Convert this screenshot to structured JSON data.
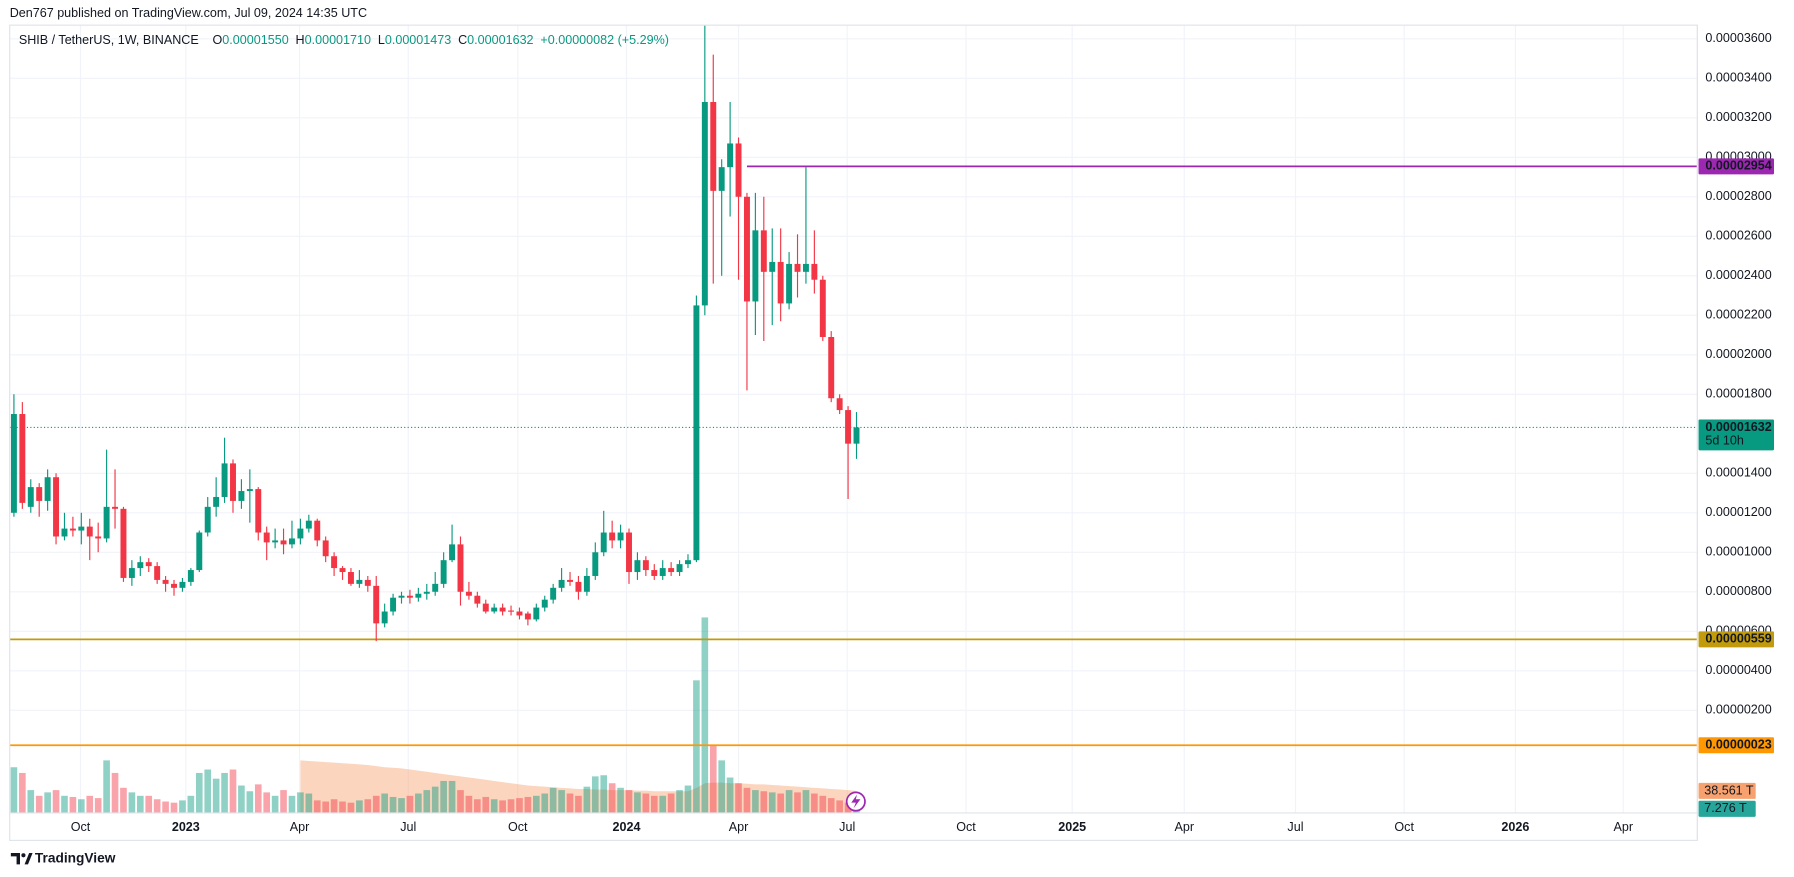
{
  "chart_data": {
    "type": "candlestick",
    "published": "Den767 published on TradingView.com, Jul 09, 2024 14:35 UTC",
    "title": "SHIB / TetherUS, 1W, BINANCE",
    "legend": [
      {
        "key": "O",
        "text": "0.00001550"
      },
      {
        "key": "H",
        "text": "0.00001710"
      },
      {
        "key": "L",
        "text": "0.00001473"
      },
      {
        "key": "C",
        "text": "0.00001632"
      }
    ],
    "change": "+0.00000082 (+5.29%)",
    "up_color": "#089981",
    "down_color": "#f23645",
    "open": [
      1.2e-05,
      1.7e-05,
      1.23e-05,
      1.33e-05,
      1.26e-05,
      1.38e-05,
      1.08e-05,
      1.12e-05,
      1.11e-05,
      1.13e-05,
      1.08e-05,
      1.07e-05,
      1.23e-05,
      1.22e-05,
      8.7e-06,
      9.2e-06,
      9.5e-06,
      9.3e-06,
      8.6e-06,
      8.4e-06,
      8.2e-06,
      8.5e-06,
      9.1e-06,
      1.1e-05,
      1.23e-05,
      1.28e-05,
      1.45e-05,
      1.26e-05,
      1.31e-05,
      1.32e-05,
      1.1e-05,
      1.05e-05,
      1.06e-05,
      1.04e-05,
      1.07e-05,
      1.12e-05,
      1.16e-05,
      1.06e-05,
      9.8e-06,
      9.2e-06,
      9e-06,
      8.4e-06,
      8.6e-06,
      8.3e-06,
      6.4e-06,
      7e-06,
      7.7e-06,
      7.8e-06,
      7.7e-06,
      7.9e-06,
      8e-06,
      8.4e-06,
      9.6e-06,
      1.04e-05,
      8e-06,
      7.8e-06,
      7.4e-06,
      7e-06,
      7.2e-06,
      7.05e-06,
      7e-06,
      6.9e-06,
      6.6e-06,
      7.2e-06,
      7.6e-06,
      8.2e-06,
      8.6e-06,
      8.5e-06,
      8e-06,
      8.8e-06,
      1e-05,
      1.1e-05,
      1.06e-05,
      1.1e-05,
      9e-06,
      9.6e-06,
      9.1e-06,
      8.8e-06,
      9.2e-06,
      9e-06,
      9.4e-06,
      9.6e-06,
      2.25e-05,
      3.28e-05,
      2.83e-05,
      2.95e-05,
      3.07e-05,
      2.8e-05,
      2.27e-05,
      2.63e-05,
      2.42e-05,
      2.47e-05,
      2.26e-05,
      2.46e-05,
      2.42e-05,
      2.46e-05,
      2.38e-05,
      2.09e-05,
      1.78e-05,
      1.72e-05,
      1.55e-05
    ],
    "high": [
      1.8e-05,
      1.76e-05,
      1.37e-05,
      1.35e-05,
      1.42e-05,
      1.4e-05,
      1.2e-05,
      1.18e-05,
      1.2e-05,
      1.17e-05,
      1.15e-05,
      1.52e-05,
      1.42e-05,
      1.23e-05,
      9.6e-06,
      9.8e-06,
      9.7e-06,
      9.5e-06,
      8.8e-06,
      8.6e-06,
      8.7e-06,
      9.2e-06,
      1.11e-05,
      1.28e-05,
      1.38e-05,
      1.58e-05,
      1.47e-05,
      1.37e-05,
      1.42e-05,
      1.33e-05,
      1.13e-05,
      1.12e-05,
      1.12e-05,
      1.16e-05,
      1.17e-05,
      1.19e-05,
      1.17e-05,
      1.08e-05,
      1e-05,
      9.3e-06,
      9.2e-06,
      9.1e-06,
      8.8e-06,
      8.8e-06,
      7.4e-06,
      7.9e-06,
      8e-06,
      8.1e-06,
      8.2e-06,
      8.4e-06,
      9e-06,
      1e-05,
      1.14e-05,
      1.08e-05,
      8.5e-06,
      8e-06,
      7.6e-06,
      7.4e-06,
      7.4e-06,
      7.3e-06,
      7.2e-06,
      7e-06,
      7.4e-06,
      7.8e-06,
      8.4e-06,
      9.2e-06,
      9e-06,
      8.8e-06,
      9.2e-06,
      1.05e-05,
      1.21e-05,
      1.16e-05,
      1.14e-05,
      1.12e-05,
      1e-05,
      9.8e-06,
      9.4e-06,
      9.6e-06,
      9.5e-06,
      9.6e-06,
      9.9e-06,
      2.3e-05,
      3.7e-05,
      3.52e-05,
      2.99e-05,
      3.28e-05,
      3.1e-05,
      2.82e-05,
      2.82e-05,
      2.8e-05,
      2.64e-05,
      2.64e-05,
      2.52e-05,
      2.61e-05,
      2.95e-05,
      2.63e-05,
      2.4e-05,
      2.12e-05,
      1.8e-05,
      1.74e-05,
      1.71e-05
    ],
    "low": [
      1.18e-05,
      1.22e-05,
      1.2e-05,
      1.18e-05,
      1.21e-05,
      1.04e-05,
      1.06e-05,
      1.08e-05,
      1.04e-05,
      9.6e-06,
      1e-05,
      1.05e-05,
      1.12e-05,
      8.5e-06,
      8.3e-06,
      8.8e-06,
      9e-06,
      8.4e-06,
      8e-06,
      7.8e-06,
      8e-06,
      8.3e-06,
      9e-06,
      1.08e-05,
      1.18e-05,
      1.25e-05,
      1.2e-05,
      1.22e-05,
      1.15e-05,
      1.06e-05,
      9.6e-06,
      1.02e-05,
      9.9e-06,
      1.02e-05,
      1.04e-05,
      1.1e-05,
      1.03e-05,
      9.5e-06,
      8.8e-06,
      8.6e-06,
      8.3e-06,
      8.2e-06,
      8e-06,
      5.5e-06,
      6.2e-06,
      6.8e-06,
      7.4e-06,
      7.4e-06,
      7.5e-06,
      7.6e-06,
      7.8e-06,
      8.2e-06,
      9.5e-06,
      7.3e-06,
      7.6e-06,
      7.2e-06,
      6.9e-06,
      6.9e-06,
      6.8e-06,
      6.8e-06,
      6.6e-06,
      6.3e-06,
      6.5e-06,
      7e-06,
      7.4e-06,
      8e-06,
      8.3e-06,
      7.6e-06,
      7.8e-06,
      8.6e-06,
      9.8e-06,
      1.02e-05,
      1.02e-05,
      8.4e-06,
      8.6e-06,
      8.8e-06,
      8.6e-06,
      8.6e-06,
      8.8e-06,
      8.8e-06,
      9.2e-06,
      9.5e-06,
      2.2e-05,
      2.36e-05,
      2.4e-05,
      2.7e-05,
      2.38e-05,
      1.82e-05,
      2.1e-05,
      2.07e-05,
      2.15e-05,
      2.17e-05,
      2.23e-05,
      2.29e-05,
      2.36e-05,
      2.31e-05,
      2.07e-05,
      1.76e-05,
      1.7e-05,
      1.27e-05,
      1.473e-05
    ],
    "close": [
      1.7e-05,
      1.25e-05,
      1.33e-05,
      1.26e-05,
      1.38e-05,
      1.08e-05,
      1.12e-05,
      1.11e-05,
      1.13e-05,
      1.08e-05,
      1.07e-05,
      1.23e-05,
      1.22e-05,
      8.7e-06,
      9.2e-06,
      9.5e-06,
      9.3e-06,
      8.6e-06,
      8.4e-06,
      8.2e-06,
      8.5e-06,
      9.1e-06,
      1.1e-05,
      1.23e-05,
      1.28e-05,
      1.45e-05,
      1.26e-05,
      1.31e-05,
      1.32e-05,
      1.1e-05,
      1.05e-05,
      1.06e-05,
      1.04e-05,
      1.07e-05,
      1.12e-05,
      1.16e-05,
      1.06e-05,
      9.8e-06,
      9.2e-06,
      9e-06,
      8.4e-06,
      8.6e-06,
      8.3e-06,
      6.4e-06,
      7e-06,
      7.7e-06,
      7.8e-06,
      7.7e-06,
      7.9e-06,
      8e-06,
      8.4e-06,
      9.6e-06,
      1.04e-05,
      8e-06,
      7.8e-06,
      7.4e-06,
      7e-06,
      7.2e-06,
      7e-06,
      7e-06,
      6.8e-06,
      6.6e-06,
      7.2e-06,
      7.6e-06,
      8.2e-06,
      8.6e-06,
      8.5e-06,
      8e-06,
      8.8e-06,
      1e-05,
      1.1e-05,
      1.06e-05,
      1.1e-05,
      9e-06,
      9.6e-06,
      9.1e-06,
      8.8e-06,
      9.2e-06,
      9e-06,
      9.4e-06,
      9.6e-06,
      2.25e-05,
      3.28e-05,
      2.83e-05,
      2.95e-05,
      3.07e-05,
      2.8e-05,
      2.27e-05,
      2.63e-05,
      2.42e-05,
      2.47e-05,
      2.26e-05,
      2.46e-05,
      2.42e-05,
      2.46e-05,
      2.38e-05,
      2.09e-05,
      1.78e-05,
      1.72e-05,
      1.55e-05,
      1.632e-05
    ],
    "volume": {
      "values": [
        80,
        70,
        40,
        30,
        36,
        40,
        30,
        28,
        24,
        30,
        26,
        92,
        70,
        44,
        36,
        30,
        30,
        24,
        20,
        18,
        22,
        30,
        70,
        76,
        60,
        70,
        76,
        48,
        38,
        50,
        36,
        30,
        40,
        30,
        36,
        34,
        22,
        20,
        24,
        20,
        18,
        22,
        24,
        30,
        34,
        28,
        26,
        30,
        34,
        40,
        46,
        56,
        56,
        40,
        30,
        24,
        28,
        24,
        22,
        24,
        26,
        28,
        30,
        34,
        44,
        40,
        34,
        30,
        46,
        64,
        66,
        52,
        44,
        40,
        36,
        34,
        30,
        30,
        34,
        40,
        48,
        232,
        342,
        118,
        92,
        62,
        52,
        44,
        40,
        38,
        36,
        34,
        40,
        36,
        40,
        34,
        30,
        26,
        22,
        18,
        7.276
      ],
      "ma": [
        null,
        null,
        null,
        null,
        null,
        null,
        null,
        null,
        null,
        null,
        null,
        null,
        null,
        null,
        null,
        null,
        null,
        null,
        null,
        null,
        null,
        null,
        null,
        null,
        null,
        null,
        null,
        null,
        null,
        null,
        null,
        null,
        null,
        null,
        92,
        91,
        90,
        89,
        88,
        87,
        86,
        85,
        84,
        82,
        80,
        79,
        78,
        76,
        74,
        72,
        70,
        68,
        66,
        64,
        62,
        60,
        58,
        56,
        54,
        52,
        50,
        48,
        47,
        46,
        45,
        44,
        43,
        42,
        42,
        41,
        41,
        40,
        40,
        40,
        39,
        39,
        38,
        38,
        38,
        38,
        38,
        44,
        52,
        53,
        53,
        52,
        52,
        51,
        50,
        50,
        49,
        48,
        47,
        46,
        45,
        44,
        43,
        42,
        41,
        40,
        38.561
      ],
      "ma_color": "#f7a26e",
      "vlim": [
        0,
        350
      ],
      "tags": [
        {
          "value": 38.561,
          "label": "38.561 T",
          "color": "#f7a26e",
          "text_color": "#131722"
        },
        {
          "value": 7.276,
          "label": "7.276 T",
          "color": "#26a69a",
          "text_color": "#ffffff"
        }
      ]
    },
    "xlim": [
      -0.5,
      199.8
    ],
    "xticks": [
      {
        "value": 7.9,
        "label": "Oct"
      },
      {
        "value": 20.4,
        "label": "2023"
      },
      {
        "value": 33.9,
        "label": "Apr"
      },
      {
        "value": 46.8,
        "label": "Jul"
      },
      {
        "value": 59.8,
        "label": "Oct"
      },
      {
        "value": 72.7,
        "label": "2024"
      },
      {
        "value": 86.0,
        "label": "Apr"
      },
      {
        "value": 98.9,
        "label": "Jul"
      },
      {
        "value": 113.0,
        "label": "Oct"
      },
      {
        "value": 125.6,
        "label": "2025"
      },
      {
        "value": 138.9,
        "label": "Apr"
      },
      {
        "value": 152.1,
        "label": "Jul"
      },
      {
        "value": 165.0,
        "label": "Oct"
      },
      {
        "value": 178.2,
        "label": "2026"
      },
      {
        "value": 191.0,
        "label": "Apr"
      }
    ],
    "ylim": [
      -3.2e-06,
      3.669e-05
    ],
    "yticks": [
      {
        "value": 3.6e-05,
        "label": "0.00003600"
      },
      {
        "value": 3.4e-05,
        "label": "0.00003400"
      },
      {
        "value": 3.2e-05,
        "label": "0.00003200"
      },
      {
        "value": 3e-05,
        "label": "0.00003000"
      },
      {
        "value": 2.8e-05,
        "label": "0.00002800"
      },
      {
        "value": 2.6e-05,
        "label": "0.00002600"
      },
      {
        "value": 2.4e-05,
        "label": "0.00002400"
      },
      {
        "value": 2.2e-05,
        "label": "0.00002200"
      },
      {
        "value": 2e-05,
        "label": "0.00002000"
      },
      {
        "value": 1.8e-05,
        "label": "0.00001800"
      },
      {
        "value": 1.4e-05,
        "label": "0.00001400"
      },
      {
        "value": 1.2e-05,
        "label": "0.00001200"
      },
      {
        "value": 1e-05,
        "label": "0.00001000"
      },
      {
        "value": 8e-06,
        "label": "0.00000800"
      },
      {
        "value": 6e-06,
        "label": "0.00000600"
      },
      {
        "value": 4e-06,
        "label": "0.00000400"
      },
      {
        "value": 2e-06,
        "label": "0.00000200"
      }
    ],
    "grid": true,
    "hlines": [
      {
        "value": 2.954e-05,
        "label": "0.00002954",
        "color": "#9c27b0",
        "text_color": "#ffffff",
        "x_start": 87
      },
      {
        "value": 5.59e-06,
        "label": "0.00000559",
        "color": "#c29b0c",
        "text_color": "#ffffff",
        "x_start": -0.5
      },
      {
        "value": 2.3e-07,
        "label": "0.00000023",
        "color": "#ff9800",
        "text_color": "#131722",
        "x_start": -0.5
      }
    ],
    "last_price": {
      "value": 1.632e-05,
      "label": "0.00001632",
      "countdown": "5d 10h",
      "color": "#089981"
    },
    "brand": "TradingView"
  }
}
